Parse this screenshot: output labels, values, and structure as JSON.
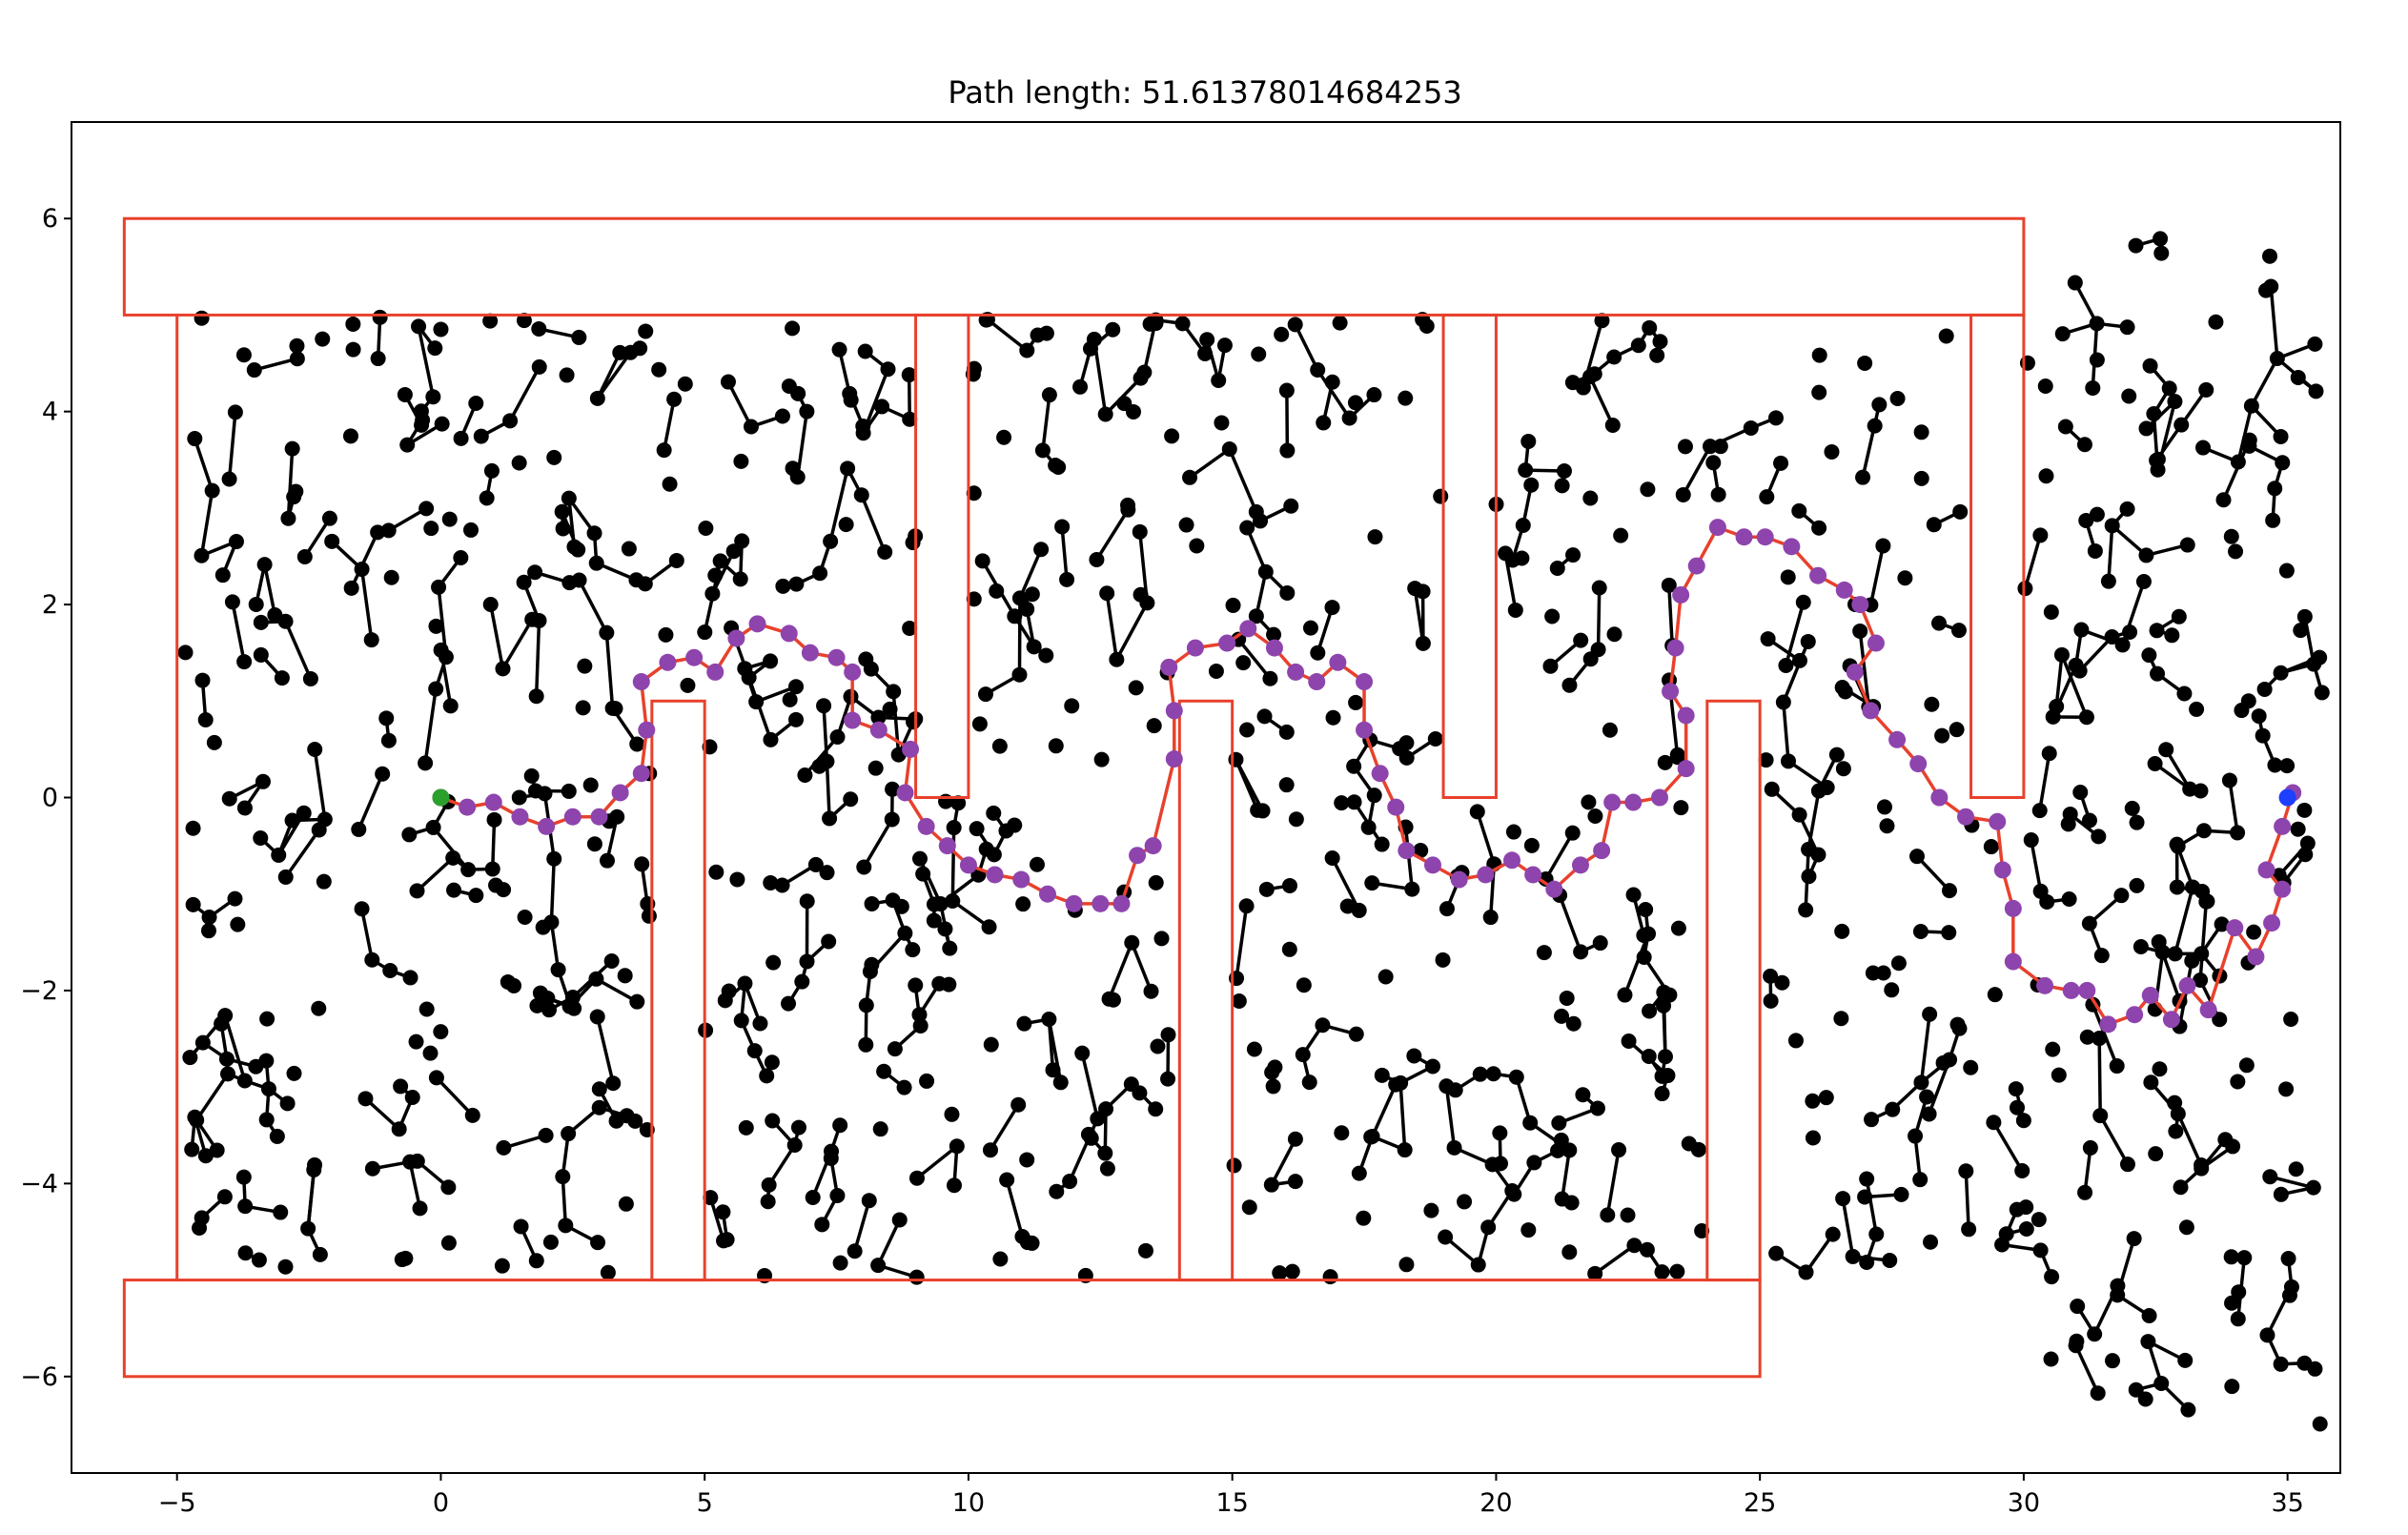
{
  "chart_data": {
    "type": "scatter",
    "title": "Path length: 51.61378014684253",
    "xlabel": "",
    "ylabel": "",
    "xlim": [
      -7,
      36
    ],
    "ylim": [
      -7,
      7
    ],
    "xticks": [
      -5,
      0,
      5,
      10,
      15,
      20,
      25,
      30,
      35
    ],
    "xtick_labels": [
      "−5",
      "0",
      "5",
      "10",
      "15",
      "20",
      "25",
      "30",
      "35"
    ],
    "yticks": [
      -6,
      -4,
      -2,
      0,
      2,
      4,
      6
    ],
    "ytick_labels": [
      "−6",
      "−4",
      "−2",
      "0",
      "2",
      "4",
      "6"
    ],
    "grid": false,
    "legend": "none",
    "colors": {
      "obstacle": "#e8412c",
      "tree": "#000000",
      "path_node": "#8e44ad",
      "path_line": "#e8412c",
      "start": "#2ca02c",
      "goal": "#1f3fff"
    },
    "start": [
      0,
      0
    ],
    "goal": [
      35,
      0
    ],
    "obstacles": [
      {
        "name": "top-wall",
        "x": -6,
        "y": 5,
        "width": 36,
        "height": 1
      },
      {
        "name": "bottom-wall",
        "x": -6,
        "y": -6,
        "width": 31,
        "height": 1
      },
      {
        "name": "left-wall",
        "x": -5,
        "y": -5,
        "width": 0,
        "height": 10
      },
      {
        "name": "pillar-1",
        "x": 4,
        "y": -5,
        "width": 1,
        "height": 6
      },
      {
        "name": "pillar-2",
        "x": 14,
        "y": -5,
        "width": 1,
        "height": 6
      },
      {
        "name": "pillar-3",
        "x": 24,
        "y": -5,
        "width": 1,
        "height": 6
      },
      {
        "name": "hanging-1",
        "x": 9,
        "y": 0,
        "width": 1,
        "height": 5
      },
      {
        "name": "hanging-2",
        "x": 19,
        "y": 0,
        "width": 1,
        "height": 5
      },
      {
        "name": "hanging-3",
        "x": 29,
        "y": 0,
        "width": 1,
        "height": 5
      }
    ],
    "path": [
      [
        0,
        0
      ],
      [
        0.5,
        -0.1
      ],
      [
        1,
        -0.05
      ],
      [
        1.5,
        -0.2
      ],
      [
        2,
        -0.3
      ],
      [
        2.5,
        -0.2
      ],
      [
        3,
        -0.2
      ],
      [
        3.4,
        0.05
      ],
      [
        3.8,
        0.25
      ],
      [
        3.9,
        0.7
      ],
      [
        3.8,
        1.2
      ],
      [
        4.3,
        1.4
      ],
      [
        4.8,
        1.45
      ],
      [
        5.2,
        1.3
      ],
      [
        5.6,
        1.65
      ],
      [
        6.0,
        1.8
      ],
      [
        6.6,
        1.7
      ],
      [
        7.0,
        1.5
      ],
      [
        7.5,
        1.45
      ],
      [
        7.8,
        1.3
      ],
      [
        7.8,
        0.8
      ],
      [
        8.3,
        0.7
      ],
      [
        8.9,
        0.5
      ],
      [
        8.8,
        0.05
      ],
      [
        9.2,
        -0.3
      ],
      [
        9.6,
        -0.5
      ],
      [
        10.0,
        -0.7
      ],
      [
        10.5,
        -0.8
      ],
      [
        11.0,
        -0.85
      ],
      [
        11.5,
        -1.0
      ],
      [
        12.0,
        -1.1
      ],
      [
        12.5,
        -1.1
      ],
      [
        12.9,
        -1.1
      ],
      [
        13.2,
        -0.6
      ],
      [
        13.5,
        -0.5
      ],
      [
        13.9,
        0.4
      ],
      [
        13.9,
        0.9
      ],
      [
        13.8,
        1.35
      ],
      [
        14.3,
        1.55
      ],
      [
        14.9,
        1.6
      ],
      [
        15.3,
        1.75
      ],
      [
        15.8,
        1.55
      ],
      [
        16.2,
        1.3
      ],
      [
        16.6,
        1.2
      ],
      [
        17.0,
        1.4
      ],
      [
        17.5,
        1.2
      ],
      [
        17.5,
        0.7
      ],
      [
        17.8,
        0.25
      ],
      [
        18.1,
        -0.1
      ],
      [
        18.3,
        -0.55
      ],
      [
        18.8,
        -0.7
      ],
      [
        19.3,
        -0.85
      ],
      [
        19.8,
        -0.8
      ],
      [
        20.3,
        -0.65
      ],
      [
        20.7,
        -0.8
      ],
      [
        21.1,
        -0.95
      ],
      [
        21.6,
        -0.7
      ],
      [
        22.0,
        -0.55
      ],
      [
        22.2,
        -0.05
      ],
      [
        22.6,
        -0.05
      ],
      [
        23.1,
        0.0
      ],
      [
        23.6,
        0.3
      ],
      [
        23.6,
        0.85
      ],
      [
        23.3,
        1.1
      ],
      [
        23.4,
        1.55
      ],
      [
        23.5,
        2.1
      ],
      [
        23.8,
        2.4
      ],
      [
        24.2,
        2.8
      ],
      [
        24.7,
        2.7
      ],
      [
        25.1,
        2.7
      ],
      [
        25.6,
        2.6
      ],
      [
        26.1,
        2.3
      ],
      [
        26.6,
        2.15
      ],
      [
        26.9,
        2.0
      ],
      [
        27.2,
        1.6
      ],
      [
        26.8,
        1.3
      ],
      [
        27.1,
        0.9
      ],
      [
        27.6,
        0.6
      ],
      [
        28.0,
        0.35
      ],
      [
        28.4,
        0.0
      ],
      [
        28.9,
        -0.2
      ],
      [
        29.5,
        -0.25
      ],
      [
        29.6,
        -0.75
      ],
      [
        29.8,
        -1.15
      ],
      [
        29.8,
        -1.7
      ],
      [
        30.4,
        -1.95
      ],
      [
        30.9,
        -2.0
      ],
      [
        31.2,
        -2.0
      ],
      [
        31.6,
        -2.35
      ],
      [
        32.1,
        -2.25
      ],
      [
        32.4,
        -2.05
      ],
      [
        32.8,
        -2.3
      ],
      [
        33.1,
        -1.95
      ],
      [
        33.5,
        -2.2
      ],
      [
        34.0,
        -1.35
      ],
      [
        34.4,
        -1.65
      ],
      [
        34.7,
        -1.3
      ],
      [
        34.9,
        -0.95
      ],
      [
        34.6,
        -0.75
      ],
      [
        34.9,
        -0.3
      ],
      [
        35.1,
        0.05
      ],
      [
        35,
        0
      ]
    ]
  }
}
